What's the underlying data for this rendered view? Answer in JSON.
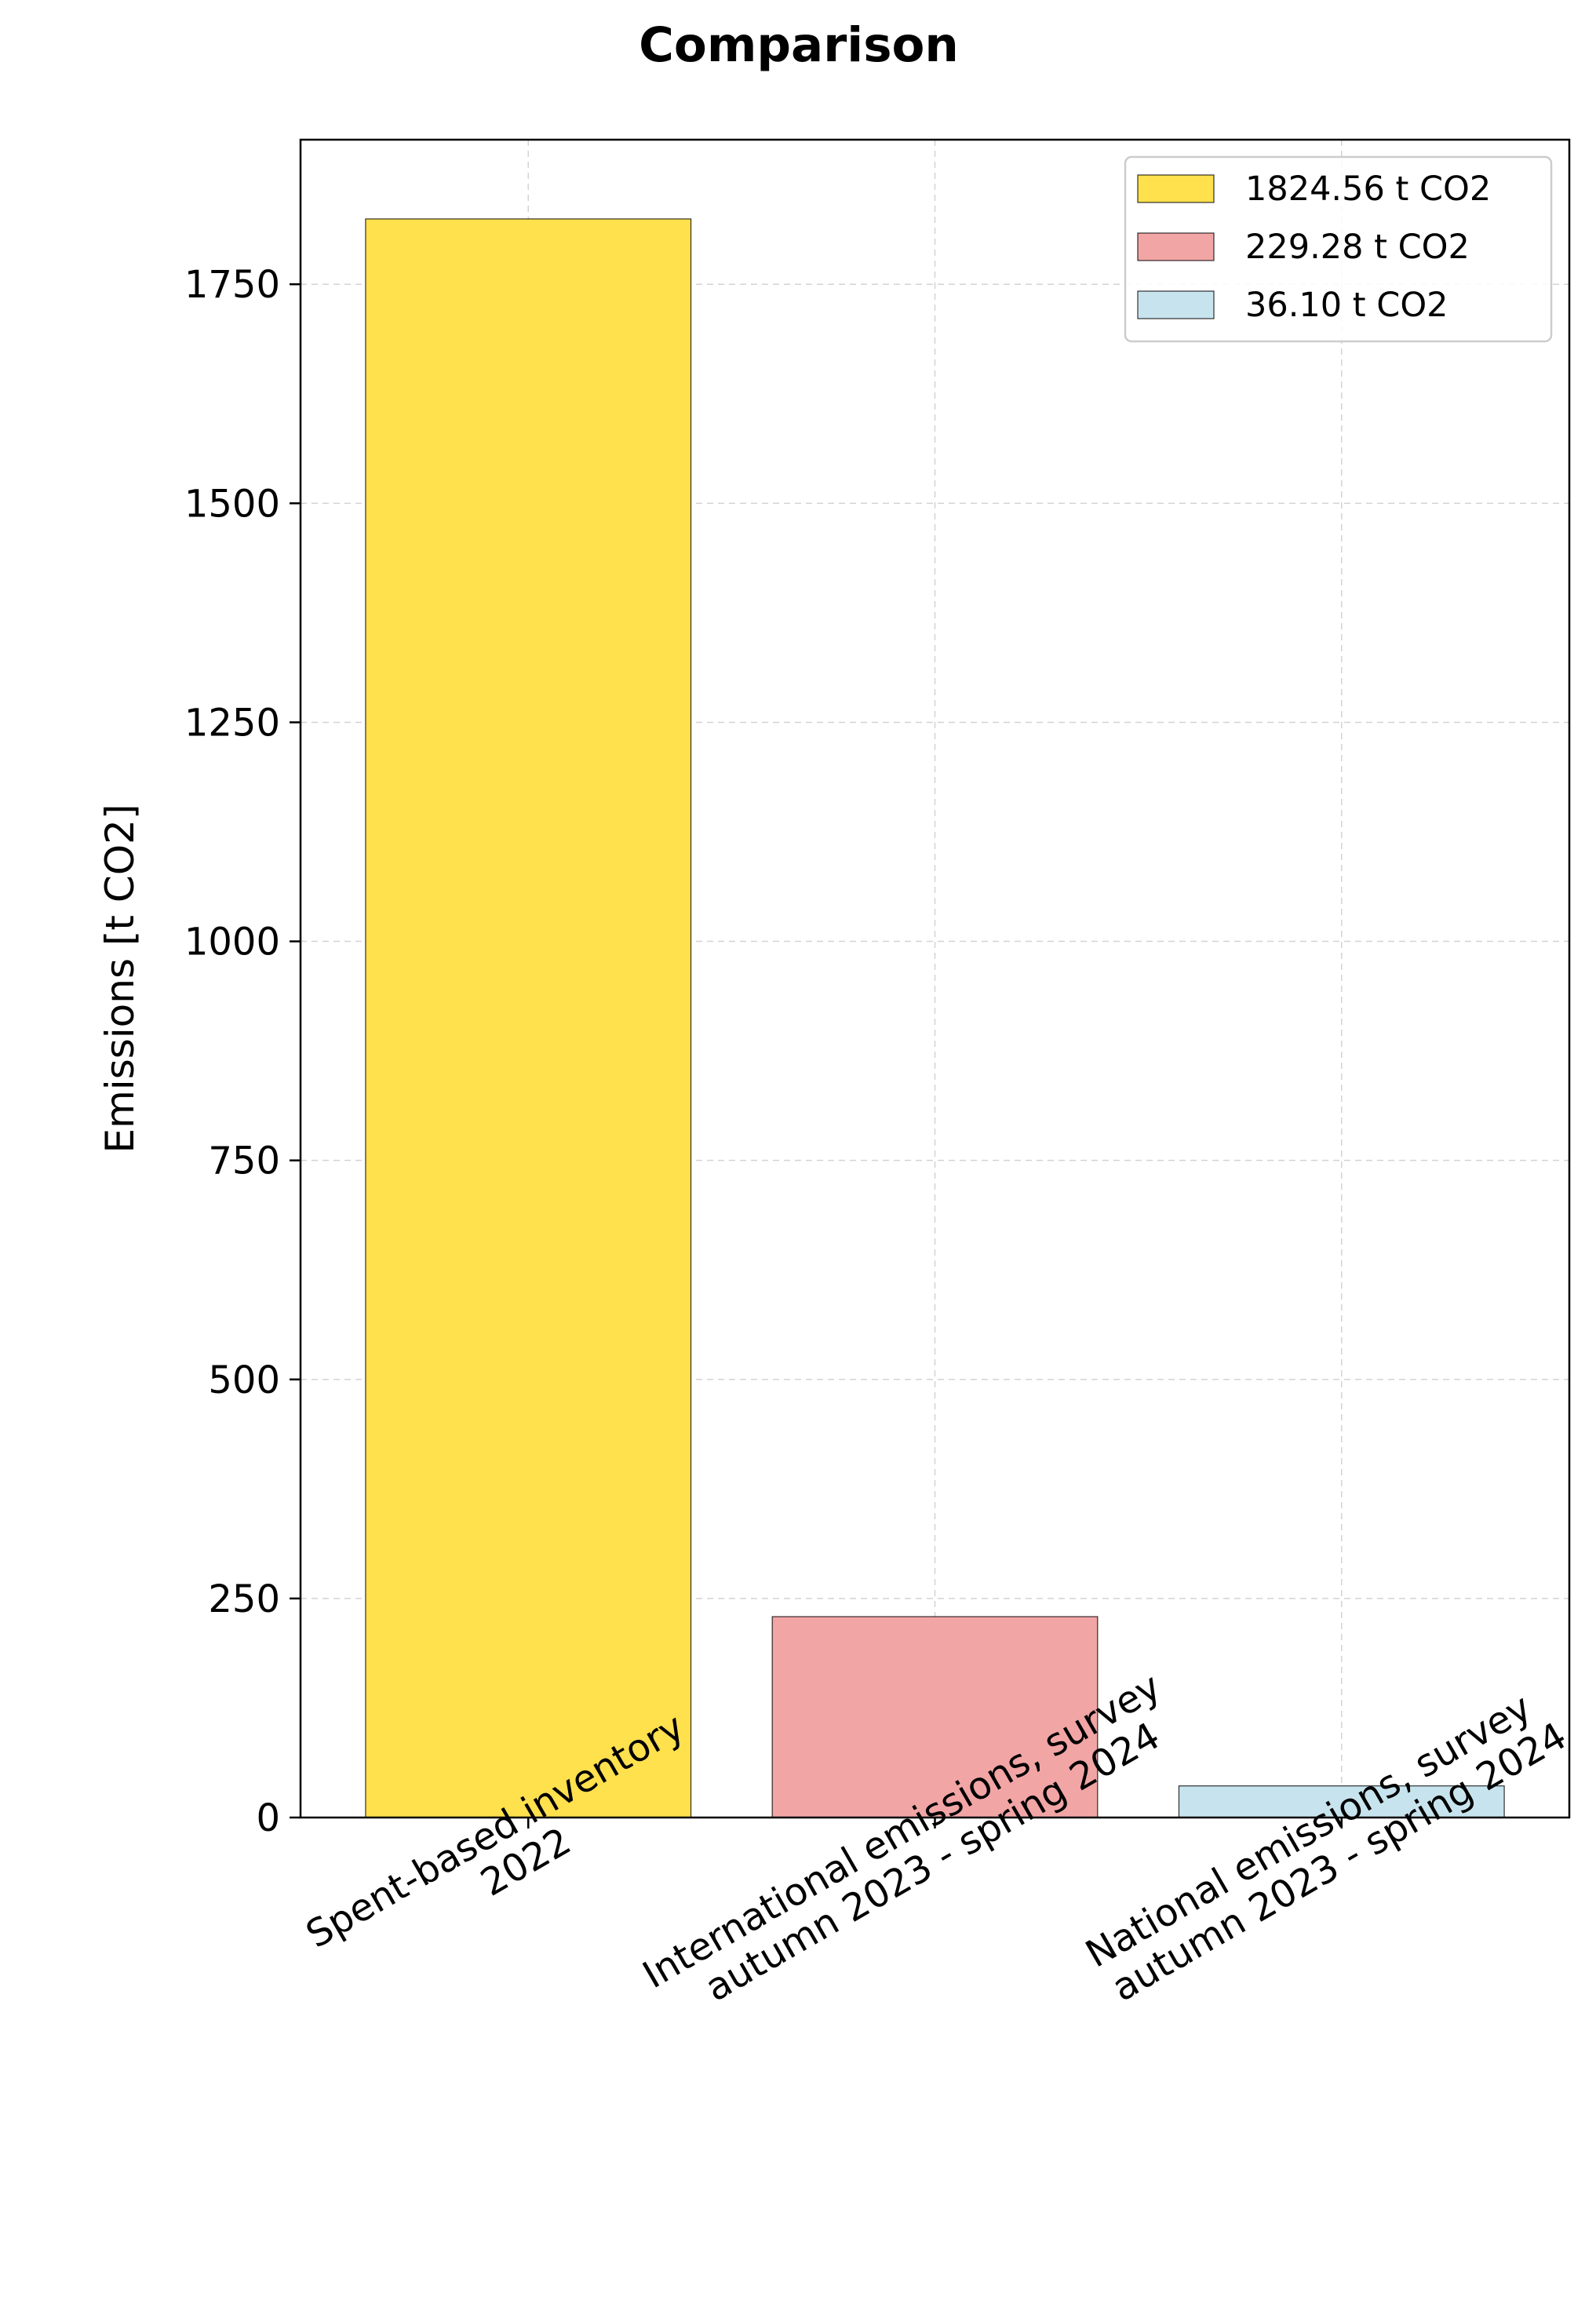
{
  "chart_data": {
    "type": "bar",
    "title": "Comparison",
    "xlabel": "",
    "ylabel": "Emissions [t CO2]",
    "ylim": [
      0,
      1915
    ],
    "yticks": [
      0,
      250,
      500,
      750,
      1000,
      1250,
      1500,
      1750
    ],
    "ytick_labels": [
      "0",
      "250",
      "500",
      "750",
      "1000",
      "1250",
      "1500",
      "1750"
    ],
    "categories": [
      [
        "Spent-based inventory",
        "2022"
      ],
      [
        "International emissions, survey",
        "autumn 2023 - spring 2024"
      ],
      [
        "National emissions, survey",
        "autumn 2023 - spring 2024"
      ]
    ],
    "values": [
      1824.56,
      229.28,
      36.1
    ],
    "colors": [
      "#ffe04d",
      "#f2a5a5",
      "#c7e4ee"
    ],
    "legend": {
      "placement": "top-right",
      "entries": [
        "1824.56 t CO2",
        "229.28 t CO2",
        "36.10 t CO2"
      ]
    },
    "grid": true
  }
}
